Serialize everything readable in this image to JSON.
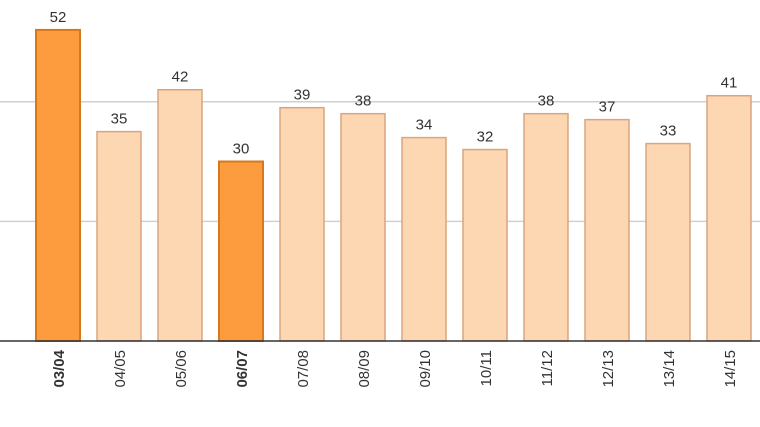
{
  "chart_data": {
    "type": "bar",
    "categories": [
      "03/04",
      "04/05",
      "05/06",
      "06/07",
      "07/08",
      "08/09",
      "09/10",
      "10/11",
      "11/12",
      "12/13",
      "13/14",
      "14/15"
    ],
    "values": [
      52,
      35,
      42,
      30,
      39,
      38,
      34,
      32,
      38,
      37,
      33,
      41
    ],
    "highlighted": [
      true,
      false,
      false,
      true,
      false,
      false,
      false,
      false,
      false,
      false,
      false,
      false
    ],
    "color": "#fdd6b2",
    "highlight_color": "#fd9b3f",
    "ylim": [
      0,
      57
    ],
    "yticks": [
      20,
      40
    ],
    "grid": true
  }
}
